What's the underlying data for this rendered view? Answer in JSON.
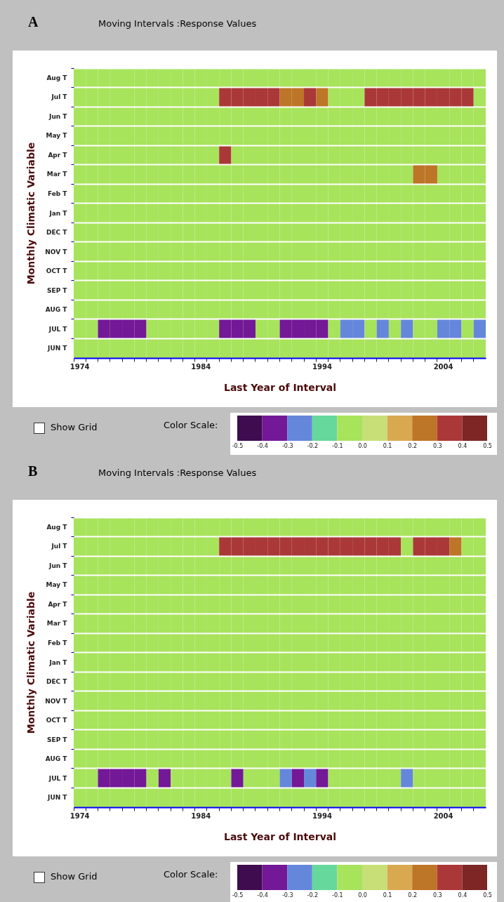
{
  "chart_data": [
    {
      "type": "heatmap",
      "title": "Moving Intervals :Response Values",
      "xlabel": "Last Year of Interval",
      "ylabel": "Monthly Climatic Variable",
      "clabel": "Color Scale:",
      "annotations": [
        "A",
        "Show Grid"
      ],
      "grid": "y",
      "categories": [
        "1974",
        null,
        null,
        null,
        null,
        null,
        null,
        null,
        null,
        null,
        "1984",
        null,
        null,
        null,
        null,
        null,
        null,
        null,
        null,
        null,
        "1994",
        null,
        null,
        null,
        null,
        null,
        null,
        null,
        null,
        null,
        "2004",
        null,
        null,
        null
      ],
      "y_categories": [
        "Aug T",
        "Jul T",
        "Jun T",
        "May T",
        "Apr T",
        "Mar T",
        "Feb T",
        "Jan T",
        "DEC T",
        "NOV T",
        "OCT T",
        "SEP T",
        "AUG T",
        "JUL T",
        "JUN T"
      ],
      "cells": [
        [
          -0.05,
          -0.05,
          -0.05,
          -0.05,
          -0.05,
          -0.05,
          -0.05,
          -0.05,
          -0.05,
          -0.05,
          -0.05,
          -0.05,
          -0.05,
          -0.05,
          -0.05,
          -0.05,
          -0.05,
          -0.05,
          -0.05,
          -0.05,
          -0.05,
          -0.05,
          -0.05,
          -0.05,
          -0.05,
          -0.05,
          -0.05,
          -0.05,
          -0.05,
          -0.05,
          -0.05,
          -0.05,
          -0.05,
          -0.05
        ],
        [
          -0.05,
          -0.05,
          -0.05,
          -0.05,
          -0.05,
          -0.05,
          -0.05,
          -0.05,
          -0.05,
          -0.05,
          -0.05,
          -0.05,
          0.35,
          0.35,
          0.35,
          0.35,
          0.35,
          0.25,
          0.25,
          0.35,
          0.25,
          -0.05,
          -0.05,
          -0.05,
          0.35,
          0.35,
          0.35,
          0.35,
          0.35,
          0.35,
          0.35,
          0.35,
          0.35,
          -0.05
        ],
        [
          -0.05,
          -0.05,
          -0.05,
          -0.05,
          -0.05,
          -0.05,
          -0.05,
          -0.05,
          -0.05,
          -0.05,
          -0.05,
          -0.05,
          -0.05,
          -0.05,
          -0.05,
          -0.05,
          -0.05,
          -0.05,
          -0.05,
          -0.05,
          -0.05,
          -0.05,
          -0.05,
          -0.05,
          -0.05,
          -0.05,
          -0.05,
          -0.05,
          -0.05,
          -0.05,
          -0.05,
          -0.05,
          -0.05,
          -0.05
        ],
        [
          -0.05,
          -0.05,
          -0.05,
          -0.05,
          -0.05,
          -0.05,
          -0.05,
          -0.05,
          -0.05,
          -0.05,
          -0.05,
          -0.05,
          -0.05,
          -0.05,
          -0.05,
          -0.05,
          -0.05,
          -0.05,
          -0.05,
          -0.05,
          -0.05,
          -0.05,
          -0.05,
          -0.05,
          -0.05,
          -0.05,
          -0.05,
          -0.05,
          -0.05,
          -0.05,
          -0.05,
          -0.05,
          -0.05,
          -0.05
        ],
        [
          -0.05,
          -0.05,
          -0.05,
          -0.05,
          -0.05,
          -0.05,
          -0.05,
          -0.05,
          -0.05,
          -0.05,
          -0.05,
          -0.05,
          0.35,
          -0.05,
          -0.05,
          -0.05,
          -0.05,
          -0.05,
          -0.05,
          -0.05,
          -0.05,
          -0.05,
          -0.05,
          -0.05,
          -0.05,
          -0.05,
          -0.05,
          -0.05,
          -0.05,
          -0.05,
          -0.05,
          -0.05,
          -0.05,
          -0.05
        ],
        [
          -0.05,
          -0.05,
          -0.05,
          -0.05,
          -0.05,
          -0.05,
          -0.05,
          -0.05,
          -0.05,
          -0.05,
          -0.05,
          -0.05,
          -0.05,
          -0.05,
          -0.05,
          -0.05,
          -0.05,
          -0.05,
          -0.05,
          -0.05,
          -0.05,
          -0.05,
          -0.05,
          -0.05,
          -0.05,
          -0.05,
          -0.05,
          -0.05,
          0.25,
          0.25,
          -0.05,
          -0.05,
          -0.05,
          -0.05
        ],
        [
          -0.05,
          -0.05,
          -0.05,
          -0.05,
          -0.05,
          -0.05,
          -0.05,
          -0.05,
          -0.05,
          -0.05,
          -0.05,
          -0.05,
          -0.05,
          -0.05,
          -0.05,
          -0.05,
          -0.05,
          -0.05,
          -0.05,
          -0.05,
          -0.05,
          -0.05,
          -0.05,
          -0.05,
          -0.05,
          -0.05,
          -0.05,
          -0.05,
          -0.05,
          -0.05,
          -0.05,
          -0.05,
          -0.05,
          -0.05
        ],
        [
          -0.05,
          -0.05,
          -0.05,
          -0.05,
          -0.05,
          -0.05,
          -0.05,
          -0.05,
          -0.05,
          -0.05,
          -0.05,
          -0.05,
          -0.05,
          -0.05,
          -0.05,
          -0.05,
          -0.05,
          -0.05,
          -0.05,
          -0.05,
          -0.05,
          -0.05,
          -0.05,
          -0.05,
          -0.05,
          -0.05,
          -0.05,
          -0.05,
          -0.05,
          -0.05,
          -0.05,
          -0.05,
          -0.05,
          -0.05
        ],
        [
          -0.05,
          -0.05,
          -0.05,
          -0.05,
          -0.05,
          -0.05,
          -0.05,
          -0.05,
          -0.05,
          -0.05,
          -0.05,
          -0.05,
          -0.05,
          -0.05,
          -0.05,
          -0.05,
          -0.05,
          -0.05,
          -0.05,
          -0.05,
          -0.05,
          -0.05,
          -0.05,
          -0.05,
          -0.05,
          -0.05,
          -0.05,
          -0.05,
          -0.05,
          -0.05,
          -0.05,
          -0.05,
          -0.05,
          -0.05
        ],
        [
          -0.05,
          -0.05,
          -0.05,
          -0.05,
          -0.05,
          -0.05,
          -0.05,
          -0.05,
          -0.05,
          -0.05,
          -0.05,
          -0.05,
          -0.05,
          -0.05,
          -0.05,
          -0.05,
          -0.05,
          -0.05,
          -0.05,
          -0.05,
          -0.05,
          -0.05,
          -0.05,
          -0.05,
          -0.05,
          -0.05,
          -0.05,
          -0.05,
          -0.05,
          -0.05,
          -0.05,
          -0.05,
          -0.05,
          -0.05
        ],
        [
          -0.05,
          -0.05,
          -0.05,
          -0.05,
          -0.05,
          -0.05,
          -0.05,
          -0.05,
          -0.05,
          -0.05,
          -0.05,
          -0.05,
          -0.05,
          -0.05,
          -0.05,
          -0.05,
          -0.05,
          -0.05,
          -0.05,
          -0.05,
          -0.05,
          -0.05,
          -0.05,
          -0.05,
          -0.05,
          -0.05,
          -0.05,
          -0.05,
          -0.05,
          -0.05,
          -0.05,
          -0.05,
          -0.05,
          -0.05
        ],
        [
          -0.05,
          -0.05,
          -0.05,
          -0.05,
          -0.05,
          -0.05,
          -0.05,
          -0.05,
          -0.05,
          -0.05,
          -0.05,
          -0.05,
          -0.05,
          -0.05,
          -0.05,
          -0.05,
          -0.05,
          -0.05,
          -0.05,
          -0.05,
          -0.05,
          -0.05,
          -0.05,
          -0.05,
          -0.05,
          -0.05,
          -0.05,
          -0.05,
          -0.05,
          -0.05,
          -0.05,
          -0.05,
          -0.05,
          -0.05
        ],
        [
          -0.05,
          -0.05,
          -0.05,
          -0.05,
          -0.05,
          -0.05,
          -0.05,
          -0.05,
          -0.05,
          -0.05,
          -0.05,
          -0.05,
          -0.05,
          -0.05,
          -0.05,
          -0.05,
          -0.05,
          -0.05,
          -0.05,
          -0.05,
          -0.05,
          -0.05,
          -0.05,
          -0.05,
          -0.05,
          -0.05,
          -0.05,
          -0.05,
          -0.05,
          -0.05,
          -0.05,
          -0.05,
          -0.05,
          -0.05
        ],
        [
          -0.05,
          -0.05,
          -0.35,
          -0.35,
          -0.35,
          -0.35,
          -0.05,
          -0.05,
          -0.05,
          -0.05,
          -0.05,
          -0.05,
          -0.35,
          -0.35,
          -0.35,
          -0.05,
          -0.05,
          -0.35,
          -0.35,
          -0.35,
          -0.35,
          -0.05,
          -0.25,
          -0.25,
          -0.05,
          -0.25,
          -0.05,
          -0.25,
          -0.05,
          -0.05,
          -0.25,
          -0.25,
          -0.05,
          -0.25
        ],
        [
          -0.05,
          -0.05,
          -0.05,
          -0.05,
          -0.05,
          -0.05,
          -0.05,
          -0.05,
          -0.05,
          -0.05,
          -0.05,
          -0.05,
          -0.05,
          -0.05,
          -0.05,
          -0.05,
          -0.05,
          -0.05,
          -0.05,
          -0.05,
          -0.05,
          -0.05,
          -0.05,
          -0.05,
          -0.05,
          -0.05,
          -0.05,
          -0.05,
          -0.05,
          -0.05,
          -0.05,
          -0.05,
          -0.05,
          -0.05
        ]
      ],
      "clim": [
        -0.5,
        0.5
      ],
      "cticks": [
        -0.5,
        -0.4,
        -0.3,
        -0.2,
        -0.1,
        {
          "value": 0,
          "label": "0.0"
        },
        0.1,
        0.2,
        0.3,
        0.4,
        0.5
      ],
      "colors": [
        "#3f0c4f",
        "#731896",
        "#6587db",
        "#66d89c",
        "#a8e35c",
        "#c8df78",
        "#d9a952",
        "#bd7527",
        "#ab3838",
        "#7c2626"
      ]
    },
    {
      "type": "heatmap",
      "title": "Moving Intervals :Response Values",
      "xlabel": "Last Year of Interval",
      "ylabel": "Monthly Climatic Variable",
      "clabel": "Color Scale:",
      "annotations": [
        "B",
        "Show Grid"
      ],
      "grid": "y",
      "categories": [
        "1974",
        null,
        null,
        null,
        null,
        null,
        null,
        null,
        null,
        null,
        "1984",
        null,
        null,
        null,
        null,
        null,
        null,
        null,
        null,
        null,
        "1994",
        null,
        null,
        null,
        null,
        null,
        null,
        null,
        null,
        null,
        "2004",
        null,
        null,
        null
      ],
      "y_categories": [
        "Aug T",
        "Jul T",
        "Jun T",
        "May T",
        "Apr T",
        "Mar T",
        "Feb T",
        "Jan T",
        "DEC T",
        "NOV T",
        "OCT T",
        "SEP T",
        "AUG T",
        "JUL T",
        "JUN T"
      ],
      "cells": [
        [
          -0.05,
          -0.05,
          -0.05,
          -0.05,
          -0.05,
          -0.05,
          -0.05,
          -0.05,
          -0.05,
          -0.05,
          -0.05,
          -0.05,
          -0.05,
          -0.05,
          -0.05,
          -0.05,
          -0.05,
          -0.05,
          -0.05,
          -0.05,
          -0.05,
          -0.05,
          -0.05,
          -0.05,
          -0.05,
          -0.05,
          -0.05,
          -0.05,
          -0.05,
          -0.05,
          -0.05,
          -0.05,
          -0.05,
          -0.05
        ],
        [
          -0.05,
          -0.05,
          -0.05,
          -0.05,
          -0.05,
          -0.05,
          -0.05,
          -0.05,
          -0.05,
          -0.05,
          -0.05,
          -0.05,
          0.35,
          0.35,
          0.35,
          0.35,
          0.35,
          0.35,
          0.35,
          0.35,
          0.35,
          0.35,
          0.35,
          0.35,
          0.35,
          0.35,
          0.35,
          -0.05,
          0.35,
          0.35,
          0.35,
          0.25,
          -0.05,
          -0.05
        ],
        [
          -0.05,
          -0.05,
          -0.05,
          -0.05,
          -0.05,
          -0.05,
          -0.05,
          -0.05,
          -0.05,
          -0.05,
          -0.05,
          -0.05,
          -0.05,
          -0.05,
          -0.05,
          -0.05,
          -0.05,
          -0.05,
          -0.05,
          -0.05,
          -0.05,
          -0.05,
          -0.05,
          -0.05,
          -0.05,
          -0.05,
          -0.05,
          -0.05,
          -0.05,
          -0.05,
          -0.05,
          -0.05,
          -0.05,
          -0.05
        ],
        [
          -0.05,
          -0.05,
          -0.05,
          -0.05,
          -0.05,
          -0.05,
          -0.05,
          -0.05,
          -0.05,
          -0.05,
          -0.05,
          -0.05,
          -0.05,
          -0.05,
          -0.05,
          -0.05,
          -0.05,
          -0.05,
          -0.05,
          -0.05,
          -0.05,
          -0.05,
          -0.05,
          -0.05,
          -0.05,
          -0.05,
          -0.05,
          -0.05,
          -0.05,
          -0.05,
          -0.05,
          -0.05,
          -0.05,
          -0.05
        ],
        [
          -0.05,
          -0.05,
          -0.05,
          -0.05,
          -0.05,
          -0.05,
          -0.05,
          -0.05,
          -0.05,
          -0.05,
          -0.05,
          -0.05,
          -0.05,
          -0.05,
          -0.05,
          -0.05,
          -0.05,
          -0.05,
          -0.05,
          -0.05,
          -0.05,
          -0.05,
          -0.05,
          -0.05,
          -0.05,
          -0.05,
          -0.05,
          -0.05,
          -0.05,
          -0.05,
          -0.05,
          -0.05,
          -0.05,
          -0.05
        ],
        [
          -0.05,
          -0.05,
          -0.05,
          -0.05,
          -0.05,
          -0.05,
          -0.05,
          -0.05,
          -0.05,
          -0.05,
          -0.05,
          -0.05,
          -0.05,
          -0.05,
          -0.05,
          -0.05,
          -0.05,
          -0.05,
          -0.05,
          -0.05,
          -0.05,
          -0.05,
          -0.05,
          -0.05,
          -0.05,
          -0.05,
          -0.05,
          -0.05,
          -0.05,
          -0.05,
          -0.05,
          -0.05,
          -0.05,
          -0.05
        ],
        [
          -0.05,
          -0.05,
          -0.05,
          -0.05,
          -0.05,
          -0.05,
          -0.05,
          -0.05,
          -0.05,
          -0.05,
          -0.05,
          -0.05,
          -0.05,
          -0.05,
          -0.05,
          -0.05,
          -0.05,
          -0.05,
          -0.05,
          -0.05,
          -0.05,
          -0.05,
          -0.05,
          -0.05,
          -0.05,
          -0.05,
          -0.05,
          -0.05,
          -0.05,
          -0.05,
          -0.05,
          -0.05,
          -0.05,
          -0.05
        ],
        [
          -0.05,
          -0.05,
          -0.05,
          -0.05,
          -0.05,
          -0.05,
          -0.05,
          -0.05,
          -0.05,
          -0.05,
          -0.05,
          -0.05,
          -0.05,
          -0.05,
          -0.05,
          -0.05,
          -0.05,
          -0.05,
          -0.05,
          -0.05,
          -0.05,
          -0.05,
          -0.05,
          -0.05,
          -0.05,
          -0.05,
          -0.05,
          -0.05,
          -0.05,
          -0.05,
          -0.05,
          -0.05,
          -0.05,
          -0.05
        ],
        [
          -0.05,
          -0.05,
          -0.05,
          -0.05,
          -0.05,
          -0.05,
          -0.05,
          -0.05,
          -0.05,
          -0.05,
          -0.05,
          -0.05,
          -0.05,
          -0.05,
          -0.05,
          -0.05,
          -0.05,
          -0.05,
          -0.05,
          -0.05,
          -0.05,
          -0.05,
          -0.05,
          -0.05,
          -0.05,
          -0.05,
          -0.05,
          -0.05,
          -0.05,
          -0.05,
          -0.05,
          -0.05,
          -0.05,
          -0.05
        ],
        [
          -0.05,
          -0.05,
          -0.05,
          -0.05,
          -0.05,
          -0.05,
          -0.05,
          -0.05,
          -0.05,
          -0.05,
          -0.05,
          -0.05,
          -0.05,
          -0.05,
          -0.05,
          -0.05,
          -0.05,
          -0.05,
          -0.05,
          -0.05,
          -0.05,
          -0.05,
          -0.05,
          -0.05,
          -0.05,
          -0.05,
          -0.05,
          -0.05,
          -0.05,
          -0.05,
          -0.05,
          -0.05,
          -0.05,
          -0.05
        ],
        [
          -0.05,
          -0.05,
          -0.05,
          -0.05,
          -0.05,
          -0.05,
          -0.05,
          -0.05,
          -0.05,
          -0.05,
          -0.05,
          -0.05,
          -0.05,
          -0.05,
          -0.05,
          -0.05,
          -0.05,
          -0.05,
          -0.05,
          -0.05,
          -0.05,
          -0.05,
          -0.05,
          -0.05,
          -0.05,
          -0.05,
          -0.05,
          -0.05,
          -0.05,
          -0.05,
          -0.05,
          -0.05,
          -0.05,
          -0.05
        ],
        [
          -0.05,
          -0.05,
          -0.05,
          -0.05,
          -0.05,
          -0.05,
          -0.05,
          -0.05,
          -0.05,
          -0.05,
          -0.05,
          -0.05,
          -0.05,
          -0.05,
          -0.05,
          -0.05,
          -0.05,
          -0.05,
          -0.05,
          -0.05,
          -0.05,
          -0.05,
          -0.05,
          -0.05,
          -0.05,
          -0.05,
          -0.05,
          -0.05,
          -0.05,
          -0.05,
          -0.05,
          -0.05,
          -0.05,
          -0.05
        ],
        [
          -0.05,
          -0.05,
          -0.05,
          -0.05,
          -0.05,
          -0.05,
          -0.05,
          -0.05,
          -0.05,
          -0.05,
          -0.05,
          -0.05,
          -0.05,
          -0.05,
          -0.05,
          -0.05,
          -0.05,
          -0.05,
          -0.05,
          -0.05,
          -0.05,
          -0.05,
          -0.05,
          -0.05,
          -0.05,
          -0.05,
          -0.05,
          -0.05,
          -0.05,
          -0.05,
          -0.05,
          -0.05,
          -0.05,
          -0.05
        ],
        [
          -0.05,
          -0.05,
          -0.35,
          -0.35,
          -0.35,
          -0.35,
          -0.05,
          -0.35,
          -0.05,
          -0.05,
          -0.05,
          -0.05,
          -0.05,
          -0.35,
          -0.05,
          -0.05,
          -0.05,
          -0.25,
          -0.35,
          -0.25,
          -0.35,
          -0.05,
          -0.05,
          -0.05,
          -0.05,
          -0.05,
          -0.05,
          -0.25,
          -0.05,
          -0.05,
          -0.05,
          -0.05,
          -0.05,
          -0.05
        ],
        [
          -0.05,
          -0.05,
          -0.05,
          -0.05,
          -0.05,
          -0.05,
          -0.05,
          -0.05,
          -0.05,
          -0.05,
          -0.05,
          -0.05,
          -0.05,
          -0.05,
          -0.05,
          -0.05,
          -0.05,
          -0.05,
          -0.05,
          -0.05,
          -0.05,
          -0.05,
          -0.05,
          -0.05,
          -0.05,
          -0.05,
          -0.05,
          -0.05,
          -0.05,
          -0.05,
          -0.05,
          -0.05,
          -0.05,
          -0.05
        ]
      ],
      "clim": [
        -0.5,
        0.5
      ],
      "cticks": [
        -0.5,
        -0.4,
        -0.3,
        -0.2,
        -0.1,
        {
          "value": 0,
          "label": "0.0"
        },
        0.1,
        0.2,
        0.3,
        0.4,
        0.5
      ],
      "colors": [
        "#3f0c4f",
        "#731896",
        "#6587db",
        "#66d89c",
        "#a8e35c",
        "#c8df78",
        "#d9a952",
        "#bd7527",
        "#ab3838",
        "#7c2626"
      ]
    }
  ]
}
